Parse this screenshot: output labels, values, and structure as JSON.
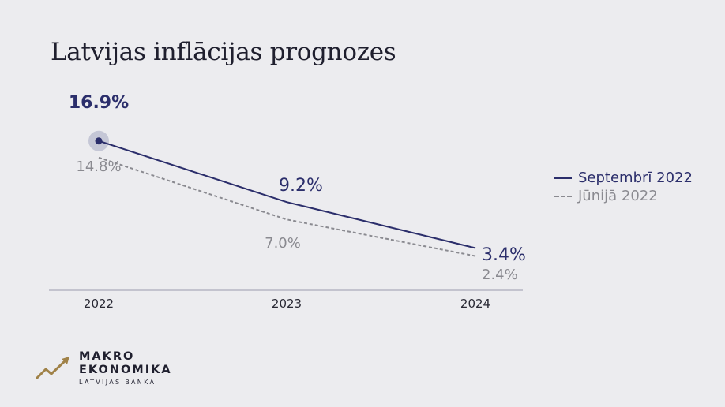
{
  "title": "Latvijas inflācijas prognozes",
  "chart_data": {
    "type": "line",
    "title": "Latvijas inflācijas prognozes",
    "categories": [
      "2022",
      "2023",
      "2024"
    ],
    "series": [
      {
        "name": "Septembrī 2022",
        "values": [
          16.9,
          9.2,
          3.4
        ],
        "labels": [
          "16.9%",
          "9.2%",
          "3.4%"
        ],
        "color": "#2b2e6b",
        "style": "solid"
      },
      {
        "name": "Jūnijā 2022",
        "values": [
          14.8,
          7.0,
          2.4
        ],
        "labels": [
          "14.8%",
          "7.0%",
          "2.4%"
        ],
        "color": "#8a8a90",
        "style": "dashed"
      }
    ],
    "highlight": {
      "series": 0,
      "index": 0
    },
    "legend": "right",
    "xlabel": "",
    "ylabel": "",
    "grid": false
  },
  "logo": {
    "line1": "MAKRO",
    "line2": "EKONOMIKA",
    "sub": "LATVIJAS BANKA",
    "color": "#a08248"
  }
}
